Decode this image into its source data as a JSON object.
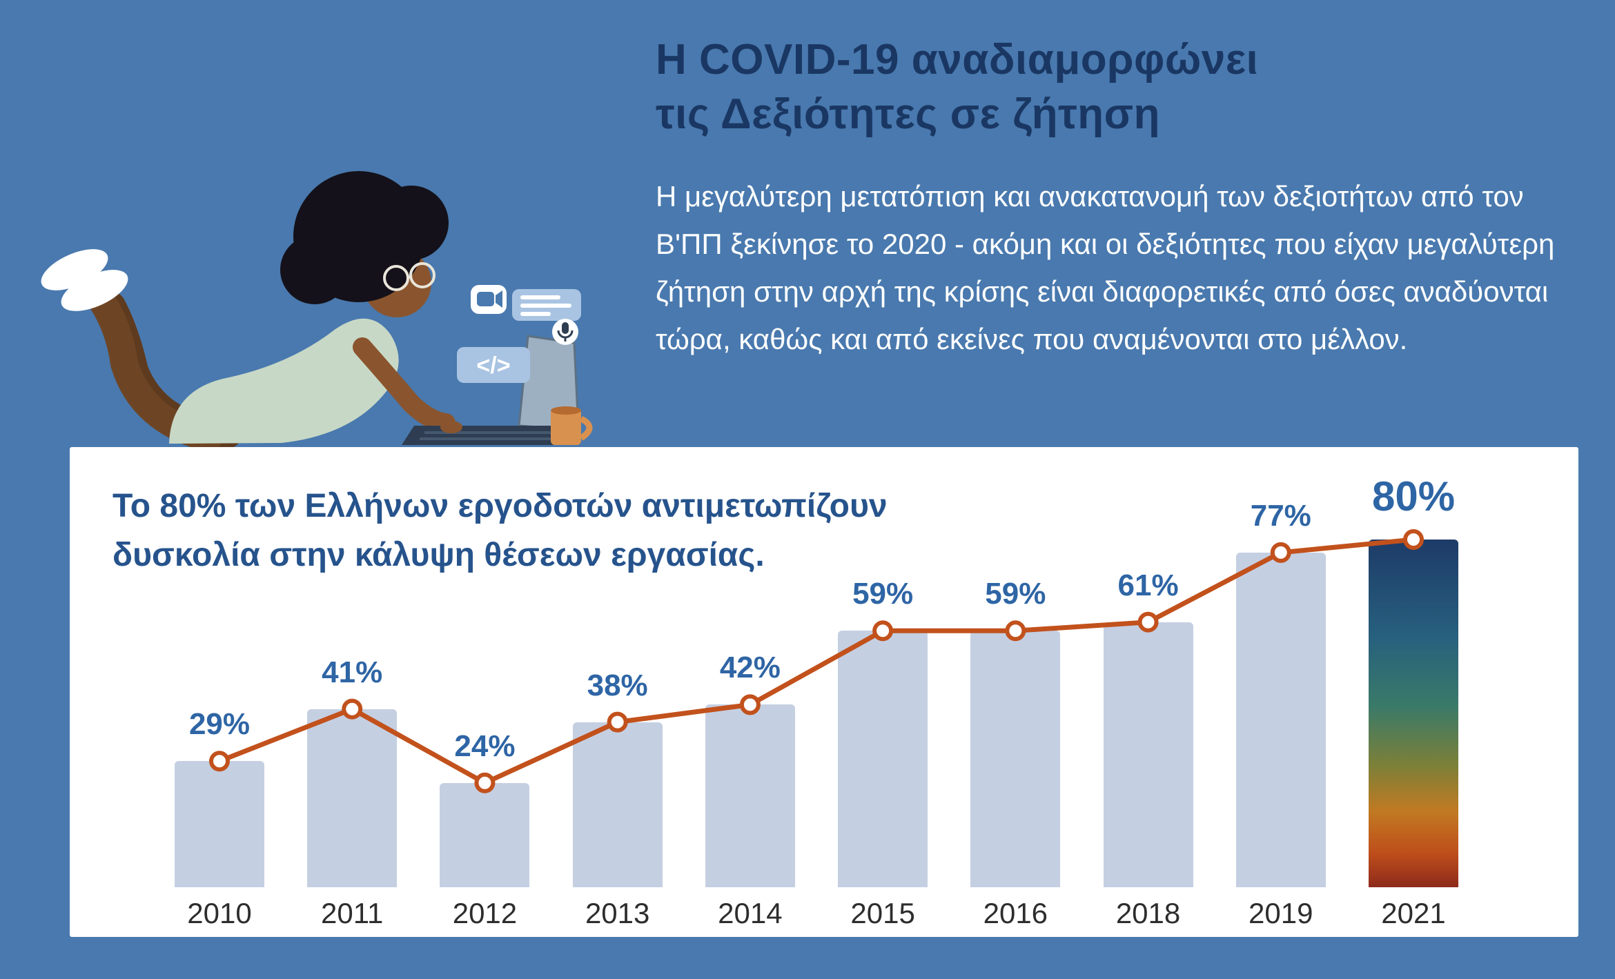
{
  "palette": {
    "bg": "#4979ae",
    "card-bg": "#ffffff",
    "title-navy": "#1a3763",
    "body-text": "#ffffff",
    "chart-title": "#26538c",
    "label-blue": "#2e65a5",
    "bar-fill": "#c5cfe2",
    "line-orange": "#c2511c",
    "axis-text": "#2d2d2d"
  },
  "header": {
    "title_line1": "Η COVID-19 αναδιαμορφώνει",
    "title_line2": "τις Δεξιότητες σε ζήτηση",
    "paragraph": "Η μεγαλύτερη μετατόπιση και ανακατανομή των δεξιοτήτων από τον Β'ΠΠ ξεκίνησε το 2020 - ακόμη και οι δεξιότητες που είχαν μεγαλύτερη ζήτηση στην αρχή της κρίσης είναι διαφορετικές από όσες αναδύονται τώρα, καθώς και από εκείνες που αναμένονται στο μέλλον."
  },
  "card": {
    "title_line1": "Το 80% των Ελλήνων εργοδοτών αντιμετωπίζουν",
    "title_line2": "δυσκολία στην κάλυψη θέσεων εργασίας."
  },
  "illustration": {
    "description": "person lying on floor working on laptop with floating media icons",
    "icons": [
      "video-camera-icon",
      "chat-lines-icon",
      "microphone-icon",
      "code-icon"
    ],
    "code_badge_label": "</>"
  },
  "chart_data": {
    "type": "bar",
    "title": "Το 80% των Ελλήνων εργοδοτών αντιμετωπίζουν δυσκολία στην κάλυψη θέσεων εργασίας.",
    "categories": [
      "2010",
      "2011",
      "2012",
      "2013",
      "2014",
      "2015",
      "2016",
      "2018",
      "2019",
      "2021"
    ],
    "values": [
      29,
      41,
      24,
      38,
      42,
      59,
      59,
      61,
      77,
      80
    ],
    "labels": [
      "29%",
      "41%",
      "24%",
      "38%",
      "42%",
      "59%",
      "59%",
      "61%",
      "77%",
      "80%"
    ],
    "xlabel": "",
    "ylabel": "",
    "ylim": [
      0,
      100
    ],
    "grid": false,
    "legend": "none",
    "bar_color": "#c5cfe2",
    "line_color": "#c2511c",
    "label_color": "#2e65a5",
    "highlight_index": 9,
    "highlight_gradient": [
      "#1d3b68 0%",
      "#27607e 28%",
      "#3a7a68 48%",
      "#7c8038 65%",
      "#c07a22 78%",
      "#bf4f1b 90%",
      "#8e2a1b 100%"
    ]
  }
}
